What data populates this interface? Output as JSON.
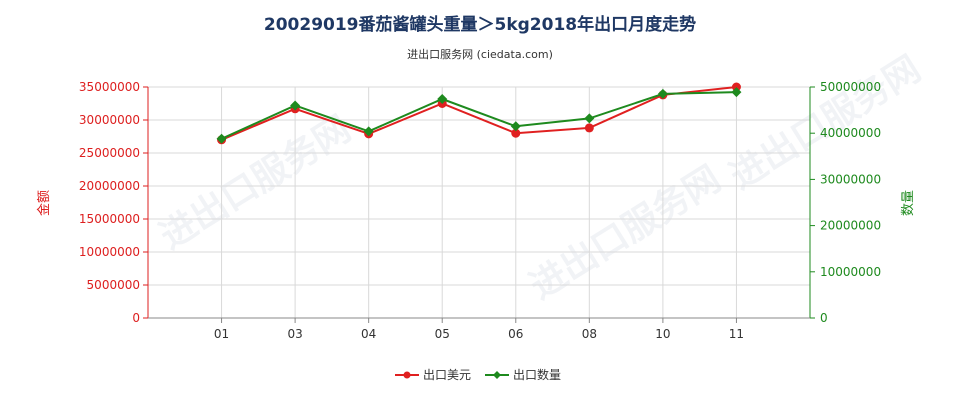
{
  "chart_data": {
    "type": "line",
    "title": "20029019番茄酱罐头重量＞5kg2018年出口月度走势",
    "subtitle": "进出口服务网 (ciedata.com)",
    "watermark": "进出口服务网",
    "categories": [
      "01",
      "03",
      "04",
      "05",
      "06",
      "08",
      "10",
      "11"
    ],
    "y_left": {
      "label": "金额",
      "range": [
        0,
        35000000
      ],
      "ticks": [
        0,
        5000000,
        10000000,
        15000000,
        20000000,
        25000000,
        30000000,
        35000000
      ],
      "color": "#dd1f1f"
    },
    "y_right": {
      "label": "数量",
      "range": [
        0,
        50000000
      ],
      "ticks": [
        0,
        10000000,
        20000000,
        30000000,
        40000000,
        50000000
      ],
      "color": "#1e8a1e"
    },
    "series": [
      {
        "name": "出口美元",
        "axis": "left",
        "color": "#e02020",
        "marker": "circle",
        "values": [
          27000000,
          31700000,
          27900000,
          32500000,
          28000000,
          28800000,
          33800000,
          35000000
        ]
      },
      {
        "name": "出口数量",
        "axis": "right",
        "color": "#1e8a1e",
        "marker": "diamond",
        "values": [
          38800000,
          46000000,
          40400000,
          47400000,
          41500000,
          43200000,
          48500000,
          48900000
        ]
      }
    ],
    "grid": true,
    "legend_position": "bottom-center"
  }
}
